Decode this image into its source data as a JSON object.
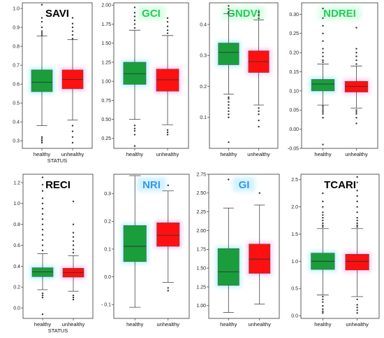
{
  "chart_data": [
    {
      "type": "box",
      "title": "SAVI",
      "title_color": "#000000",
      "xlabel": "STATUS",
      "ylim": [
        0.26,
        1.03
      ],
      "yticks": [
        0.3,
        0.4,
        0.5,
        0.6,
        0.7,
        0.8,
        0.9,
        1.0
      ],
      "ytick_labels": [
        "0.3",
        "0.4",
        "0.5",
        "0.6",
        "0.7",
        "0.8",
        "0.9",
        "1.0"
      ],
      "categories": [
        "healthy",
        "unhealthy"
      ],
      "boxes": [
        {
          "name": "healthy",
          "color": "#1a9e3c",
          "q1": 0.56,
          "median": 0.61,
          "q3": 0.675,
          "whisker_low": 0.38,
          "whisker_high": 0.855,
          "outliers": [
            0.29,
            0.3,
            0.31,
            0.32,
            0.86,
            0.87,
            0.88,
            0.9,
            0.93,
            0.95,
            1.02
          ]
        },
        {
          "name": "unhealthy",
          "color": "#ff1010",
          "q1": 0.575,
          "median": 0.625,
          "q3": 0.675,
          "whisker_low": 0.41,
          "whisker_high": 0.835,
          "outliers": [
            0.29,
            0.32,
            0.35,
            0.38,
            0.84,
            0.86,
            0.88,
            0.9,
            0.92,
            0.95
          ]
        }
      ]
    },
    {
      "type": "box",
      "title": "GCI",
      "title_color": "#22cc55",
      "xlabel": "",
      "ylim": [
        0.12,
        2.03
      ],
      "yticks": [
        0.25,
        0.5,
        0.75,
        1.0,
        1.25,
        1.5,
        1.75,
        2.0
      ],
      "ytick_labels": [
        "0.25",
        "0.50",
        "0.75",
        "1.00",
        "1.25",
        "1.50",
        "1.75",
        "2.00"
      ],
      "categories": [
        "healthy",
        "unhealthy"
      ],
      "boxes": [
        {
          "name": "healthy",
          "color": "#1a9e3c",
          "q1": 0.96,
          "median": 1.1,
          "q3": 1.25,
          "whisker_low": 0.5,
          "whisker_high": 1.67,
          "outliers": [
            0.15,
            0.3,
            0.35,
            0.38,
            0.42,
            1.7,
            1.75,
            1.8,
            1.85,
            1.9,
            1.97
          ]
        },
        {
          "name": "unhealthy",
          "color": "#ff1010",
          "q1": 0.87,
          "median": 1.02,
          "q3": 1.16,
          "whisker_low": 0.43,
          "whisker_high": 1.6,
          "outliers": [
            0.3,
            0.33,
            0.36,
            1.63,
            1.67,
            1.72,
            1.78,
            1.83
          ]
        }
      ]
    },
    {
      "type": "box",
      "title": "GNDVI",
      "title_color": "#22cc55",
      "xlabel": "",
      "ylim": [
        0.0,
        0.47
      ],
      "yticks": [
        0.1,
        0.2,
        0.3,
        0.4
      ],
      "ytick_labels": [
        "0.1",
        "0.2",
        "0.3",
        "0.4"
      ],
      "categories": [
        "healthy",
        "unhealthy"
      ],
      "boxes": [
        {
          "name": "healthy",
          "color": "#1a9e3c",
          "q1": 0.27,
          "median": 0.31,
          "q3": 0.34,
          "whisker_low": 0.175,
          "whisker_high": 0.435,
          "outliers": [
            0.02,
            0.1,
            0.11,
            0.12,
            0.13,
            0.14,
            0.15,
            0.16,
            0.165,
            0.44,
            0.45,
            0.46
          ]
        },
        {
          "name": "unhealthy",
          "color": "#ff1010",
          "q1": 0.245,
          "median": 0.28,
          "q3": 0.315,
          "whisker_low": 0.14,
          "whisker_high": 0.415,
          "outliers": [
            0.07,
            0.09,
            0.11,
            0.12,
            0.13,
            0.42,
            0.43,
            0.44
          ]
        }
      ]
    },
    {
      "type": "box",
      "title": "NDREI",
      "title_color": "#22cc55",
      "xlabel": "",
      "ylim": [
        -0.05,
        0.33
      ],
      "yticks": [
        -0.05,
        0.0,
        0.05,
        0.1,
        0.15,
        0.2,
        0.25,
        0.3
      ],
      "ytick_labels": [
        "-0.05",
        "0.00",
        "0.05",
        "0.10",
        "0.15",
        "0.20",
        "0.25",
        "0.30"
      ],
      "categories": [
        "healthy",
        "unhealthy"
      ],
      "boxes": [
        {
          "name": "healthy",
          "color": "#1a9e3c",
          "q1": 0.1,
          "median": 0.118,
          "q3": 0.13,
          "whisker_low": 0.063,
          "whisker_high": 0.17,
          "outliers": [
            -0.04,
            0.03,
            0.04,
            0.045,
            0.05,
            0.055,
            0.06,
            0.175,
            0.18,
            0.19,
            0.2,
            0.21,
            0.23,
            0.25,
            0.27,
            0.29,
            0.315
          ]
        },
        {
          "name": "unhealthy",
          "color": "#ff1010",
          "q1": 0.097,
          "median": 0.112,
          "q3": 0.125,
          "whisker_low": 0.055,
          "whisker_high": 0.165,
          "outliers": [
            0.015,
            0.03,
            0.04,
            0.045,
            0.05,
            0.17,
            0.18,
            0.19,
            0.2,
            0.21,
            0.265
          ]
        }
      ]
    },
    {
      "type": "box",
      "title": "RECI",
      "title_color": "#000000",
      "xlabel": "STATUS",
      "ylim": [
        -0.1,
        1.28
      ],
      "yticks": [
        0.0,
        0.2,
        0.4,
        0.6,
        0.8,
        1.0,
        1.2
      ],
      "ytick_labels": [
        "0.0",
        "0.2",
        "0.4",
        "0.6",
        "0.8",
        "1.0",
        "1.2"
      ],
      "categories": [
        "healthy",
        "unhealthy"
      ],
      "boxes": [
        {
          "name": "healthy",
          "color": "#1a9e3c",
          "q1": 0.3,
          "median": 0.345,
          "q3": 0.385,
          "whisker_low": 0.175,
          "whisker_high": 0.52,
          "outliers": [
            -0.06,
            0.1,
            0.12,
            0.14,
            0.55,
            0.6,
            0.65,
            0.7,
            0.75,
            0.8,
            0.85,
            0.9,
            0.95,
            1.0,
            1.05,
            1.12,
            1.18,
            1.25
          ]
        },
        {
          "name": "unhealthy",
          "color": "#ff1010",
          "q1": 0.295,
          "median": 0.34,
          "q3": 0.38,
          "whisker_low": 0.16,
          "whisker_high": 0.5,
          "outliers": [
            0.08,
            0.1,
            0.12,
            0.53,
            0.56,
            0.6,
            0.64,
            0.68,
            0.72,
            0.8,
            1.02
          ]
        }
      ]
    },
    {
      "type": "box",
      "title": "NRI",
      "title_color": "#3399ee",
      "xlabel": "",
      "ylim": [
        -0.15,
        0.37
      ],
      "yticks": [
        -0.1,
        0.0,
        0.1,
        0.2,
        0.3
      ],
      "ytick_labels": [
        "- 0.1",
        "0.0",
        "0.1",
        "0.2",
        "0.3"
      ],
      "categories": [
        "healthy",
        "unhealthy"
      ],
      "boxes": [
        {
          "name": "healthy",
          "color": "#1a9e3c",
          "q1": 0.055,
          "median": 0.11,
          "q3": 0.185,
          "whisker_low": -0.11,
          "whisker_high": 0.365,
          "outliers": []
        },
        {
          "name": "unhealthy",
          "color": "#ff1010",
          "q1": 0.11,
          "median": 0.15,
          "q3": 0.195,
          "whisker_low": -0.02,
          "whisker_high": 0.31,
          "outliers": [
            -0.05,
            -0.04,
            0.33
          ]
        }
      ]
    },
    {
      "type": "box",
      "title": "GI",
      "title_color": "#3399ee",
      "xlabel": "",
      "ylim": [
        0.83,
        2.75
      ],
      "yticks": [
        1.0,
        1.25,
        1.5,
        1.75,
        2.0,
        2.25,
        2.5,
        2.75
      ],
      "ytick_labels": [
        "1.00",
        "1.25",
        "1.50",
        "1.75",
        "2.00",
        "2.25",
        "2.50",
        "2.75"
      ],
      "categories": [
        "healthy",
        "unhealthy"
      ],
      "boxes": [
        {
          "name": "healthy",
          "color": "#1a9e3c",
          "q1": 1.27,
          "median": 1.45,
          "q3": 1.76,
          "whisker_low": 0.91,
          "whisker_high": 2.3,
          "outliers": [
            2.68
          ]
        },
        {
          "name": "unhealthy",
          "color": "#ff1010",
          "q1": 1.43,
          "median": 1.62,
          "q3": 1.82,
          "whisker_low": 1.02,
          "whisker_high": 2.34,
          "outliers": [
            2.5
          ]
        }
      ]
    },
    {
      "type": "box",
      "title": "TCARI",
      "title_color": "#000000",
      "xlabel": "",
      "ylim": [
        -0.05,
        2.6
      ],
      "yticks": [
        0.0,
        0.5,
        1.0,
        1.5,
        2.0,
        2.5
      ],
      "ytick_labels": [
        "0.0",
        "0.5",
        "1.0",
        "1.5",
        "2.0",
        "2.5"
      ],
      "categories": [
        "healthy",
        "unhealthy"
      ],
      "boxes": [
        {
          "name": "healthy",
          "color": "#1a9e3c",
          "q1": 0.85,
          "median": 1.0,
          "q3": 1.15,
          "whisker_low": 0.38,
          "whisker_high": 1.6,
          "outliers": [
            0.05,
            0.08,
            0.12,
            0.18,
            0.25,
            0.3,
            0.35,
            1.63,
            1.66,
            1.7,
            1.75,
            1.8,
            1.85,
            1.9,
            2.0,
            2.1,
            2.25
          ]
        },
        {
          "name": "unhealthy",
          "color": "#ff1010",
          "q1": 0.84,
          "median": 1.0,
          "q3": 1.13,
          "whisker_low": 0.35,
          "whisker_high": 1.6,
          "outliers": [
            0.05,
            0.1,
            0.15,
            0.2,
            0.3,
            1.63,
            1.66,
            1.7,
            1.75,
            1.8,
            1.9,
            2.0,
            2.1,
            2.2,
            2.3,
            2.45,
            2.55
          ]
        }
      ]
    }
  ]
}
